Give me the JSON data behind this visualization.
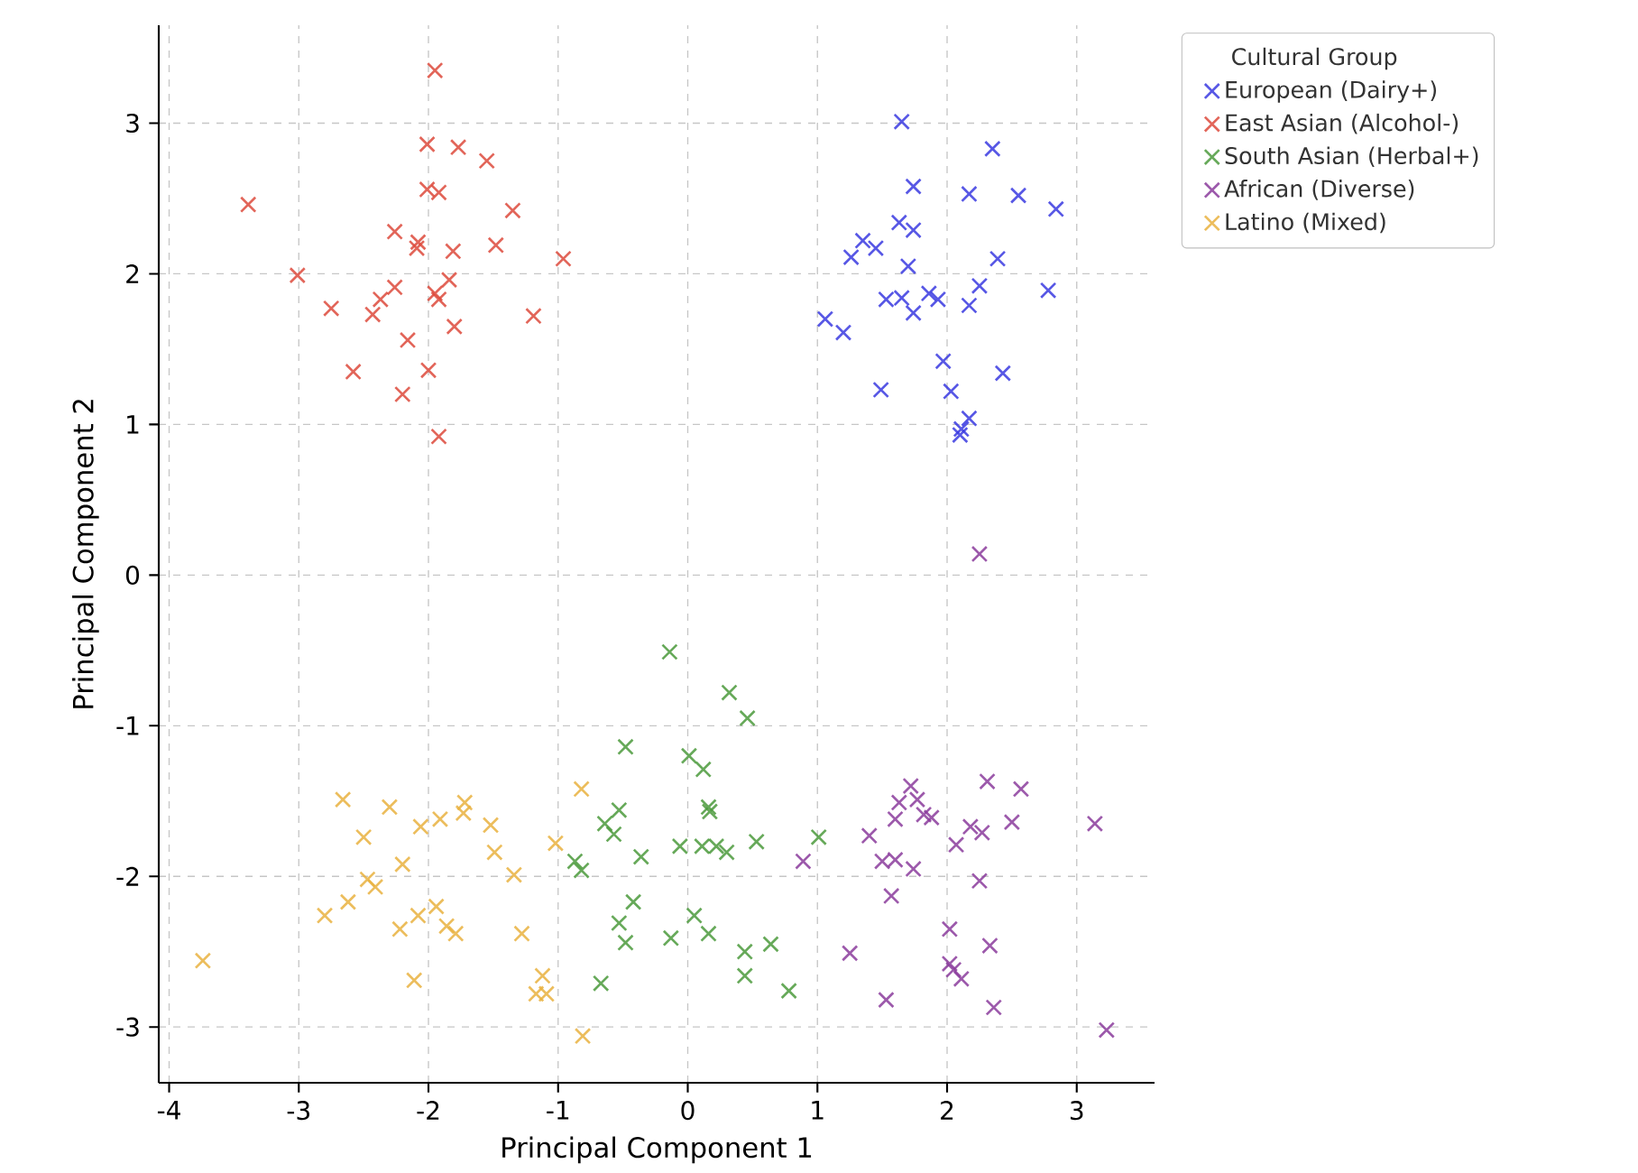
{
  "chart_data": {
    "type": "scatter",
    "xlabel": "Principal Component 1",
    "ylabel": "Principal Component 2",
    "legend_title": "Cultural Group",
    "legend": "top right",
    "grid": true,
    "marker": "cross",
    "xlim": [
      -4.08,
      3.6
    ],
    "ylim": [
      -3.37,
      3.65
    ],
    "xticks": [
      -4,
      -3,
      -2,
      -1,
      0,
      1,
      2,
      3
    ],
    "yticks": [
      -3,
      -2,
      -1,
      0,
      1,
      2,
      3
    ],
    "series": [
      {
        "name": "European (Dairy+)",
        "color": "#3a3ae0",
        "x": [
          1.65,
          2.35,
          1.74,
          2.17,
          2.55,
          2.84,
          1.63,
          1.74,
          1.35,
          1.45,
          1.26,
          1.7,
          2.39,
          2.25,
          2.78,
          1.53,
          1.65,
          1.86,
          1.93,
          2.17,
          1.74,
          1.06,
          1.2,
          1.97,
          2.43,
          1.49,
          2.03,
          2.17,
          2.11,
          2.1
        ],
        "values": [
          3.01,
          2.83,
          2.58,
          2.53,
          2.52,
          2.43,
          2.34,
          2.29,
          2.22,
          2.17,
          2.11,
          2.05,
          2.1,
          1.92,
          1.89,
          1.83,
          1.84,
          1.87,
          1.83,
          1.79,
          1.74,
          1.7,
          1.61,
          1.42,
          1.34,
          1.23,
          1.22,
          1.04,
          0.97,
          0.93
        ]
      },
      {
        "name": "East Asian (Alcohol-)",
        "color": "#dd4a3c",
        "x": [
          -1.95,
          -2.01,
          -1.77,
          -1.55,
          -2.01,
          -1.92,
          -3.39,
          -1.35,
          -2.26,
          -2.08,
          -2.09,
          -1.48,
          -1.81,
          -3.01,
          -0.96,
          -2.26,
          -2.37,
          -1.84,
          -1.95,
          -1.92,
          -2.75,
          -2.43,
          -1.19,
          -1.8,
          -2.16,
          -2.58,
          -2.0,
          -2.2,
          -1.92
        ],
        "values": [
          3.35,
          2.86,
          2.84,
          2.75,
          2.56,
          2.54,
          2.46,
          2.42,
          2.28,
          2.21,
          2.17,
          2.19,
          2.15,
          1.99,
          2.1,
          1.91,
          1.83,
          1.96,
          1.87,
          1.83,
          1.77,
          1.73,
          1.72,
          1.65,
          1.56,
          1.35,
          1.36,
          1.2,
          0.92
        ]
      },
      {
        "name": "South Asian (Herbal+)",
        "color": "#4b9a3c",
        "x": [
          -0.14,
          0.32,
          0.46,
          -0.48,
          0.01,
          0.12,
          0.16,
          0.17,
          -0.64,
          -0.53,
          -0.57,
          -0.36,
          -0.06,
          0.11,
          0.22,
          0.3,
          0.53,
          1.01,
          -0.87,
          -0.82,
          -0.42,
          -0.53,
          -0.48,
          -0.13,
          0.05,
          0.16,
          0.44,
          0.64,
          0.44,
          0.78,
          -0.67
        ],
        "values": [
          -0.51,
          -0.78,
          -0.95,
          -1.14,
          -1.2,
          -1.29,
          -1.54,
          -1.57,
          -1.65,
          -1.56,
          -1.72,
          -1.87,
          -1.8,
          -1.8,
          -1.8,
          -1.84,
          -1.77,
          -1.74,
          -1.9,
          -1.96,
          -2.17,
          -2.31,
          -2.44,
          -2.41,
          -2.26,
          -2.38,
          -2.5,
          -2.45,
          -2.66,
          -2.76,
          -2.71
        ]
      },
      {
        "name": "African (Diverse)",
        "color": "#8b3c9c",
        "x": [
          2.25,
          1.72,
          2.31,
          2.57,
          1.63,
          1.77,
          1.82,
          1.88,
          1.6,
          3.14,
          2.5,
          2.18,
          2.27,
          2.07,
          1.4,
          0.89,
          1.5,
          1.6,
          1.74,
          2.25,
          1.57,
          2.02,
          2.33,
          1.25,
          2.02,
          2.05,
          2.11,
          1.53,
          2.36,
          3.23
        ],
        "values": [
          0.14,
          -1.4,
          -1.37,
          -1.42,
          -1.51,
          -1.49,
          -1.59,
          -1.61,
          -1.62,
          -1.65,
          -1.64,
          -1.67,
          -1.71,
          -1.79,
          -1.73,
          -1.9,
          -1.9,
          -1.89,
          -1.95,
          -2.03,
          -2.13,
          -2.35,
          -2.46,
          -2.51,
          -2.58,
          -2.62,
          -2.68,
          -2.82,
          -2.87,
          -3.02
        ]
      },
      {
        "name": "Latino (Mixed)",
        "color": "#e9b23f",
        "x": [
          -3.74,
          -2.66,
          -2.3,
          -2.5,
          -2.06,
          -1.91,
          -1.72,
          -1.73,
          -1.52,
          -1.49,
          -1.34,
          -1.02,
          -0.82,
          -2.2,
          -2.47,
          -2.41,
          -2.8,
          -2.62,
          -2.08,
          -1.94,
          -1.86,
          -1.79,
          -2.22,
          -2.11,
          -1.28,
          -1.12,
          -1.17,
          -1.09,
          -0.81
        ],
        "values": [
          -2.56,
          -1.49,
          -1.54,
          -1.74,
          -1.67,
          -1.62,
          -1.51,
          -1.58,
          -1.66,
          -1.84,
          -1.99,
          -1.78,
          -1.42,
          -1.92,
          -2.02,
          -2.07,
          -2.26,
          -2.17,
          -2.26,
          -2.2,
          -2.33,
          -2.38,
          -2.35,
          -2.69,
          -2.38,
          -2.66,
          -2.78,
          -2.78,
          -3.06
        ]
      }
    ]
  }
}
